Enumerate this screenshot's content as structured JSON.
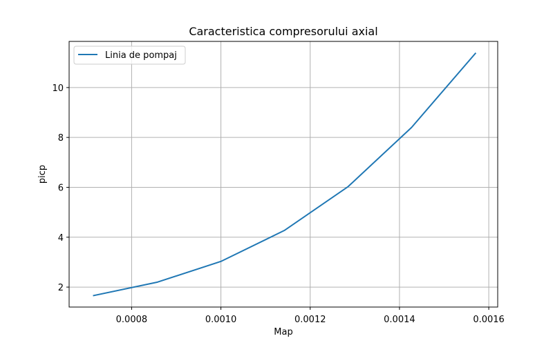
{
  "chart_data": {
    "type": "line",
    "title": "Caracteristica compresorului axial",
    "xlabel": "Map",
    "ylabel": "picp",
    "xlim": [
      0.00066,
      0.00162
    ],
    "ylim": [
      1.2,
      11.85
    ],
    "grid": true,
    "legend_position": "top-left",
    "x_ticks": [
      0.0008,
      0.001,
      0.0012,
      0.0014,
      0.0016
    ],
    "x_tick_labels": [
      "0.0008",
      "0.0010",
      "0.0012",
      "0.0014",
      "0.0016"
    ],
    "y_ticks": [
      2,
      4,
      6,
      8,
      10
    ],
    "y_tick_labels": [
      "2",
      "4",
      "6",
      "8",
      "10"
    ],
    "series": [
      {
        "name": "Linia de pompaj",
        "color": "#1f77b4",
        "x": [
          0.000715,
          0.000858,
          0.001,
          0.001142,
          0.001285,
          0.001427,
          0.00157
        ],
        "y": [
          1.66,
          2.2,
          3.03,
          4.27,
          6.03,
          8.4,
          11.37
        ]
      }
    ]
  }
}
